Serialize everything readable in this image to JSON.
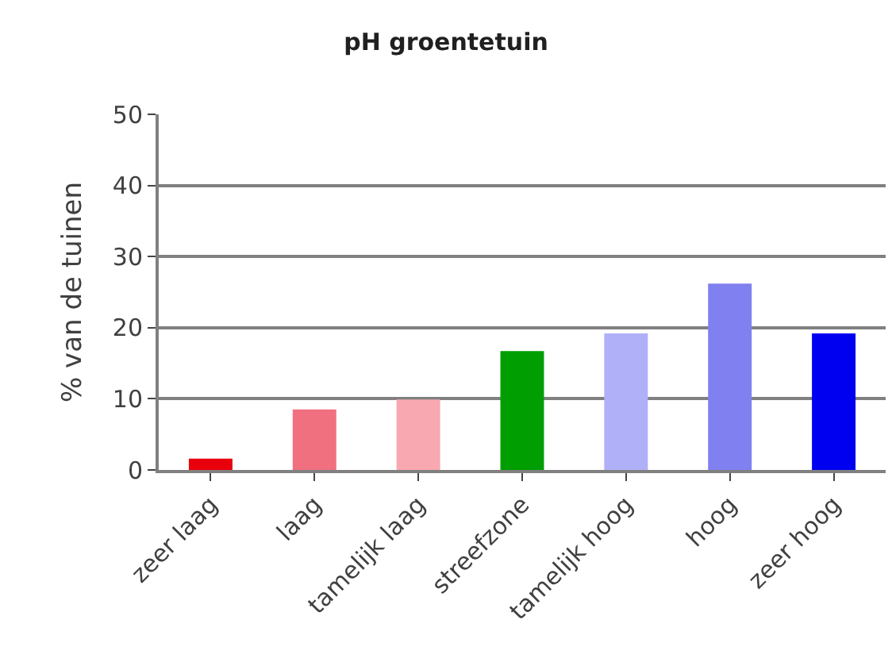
{
  "chart_data": {
    "type": "bar",
    "title": "pH groentetuin",
    "ylabel": "% van de tuinen",
    "categories": [
      "zeer laag",
      "laag",
      "tamelijk laag",
      "streefzone",
      "tamelijk hoog",
      "hoog",
      "zeer hoog"
    ],
    "values": [
      1.6,
      8.5,
      9.9,
      16.7,
      19.2,
      26.2,
      19.2
    ],
    "colors": [
      "#e8000c",
      "#f07080",
      "#f8a8b0",
      "#009e00",
      "#b0b0f8",
      "#8080f0",
      "#0000f0"
    ],
    "ylim": [
      0,
      50
    ],
    "yticks": [
      0,
      10,
      20,
      30,
      40,
      50
    ],
    "grid": "y"
  }
}
